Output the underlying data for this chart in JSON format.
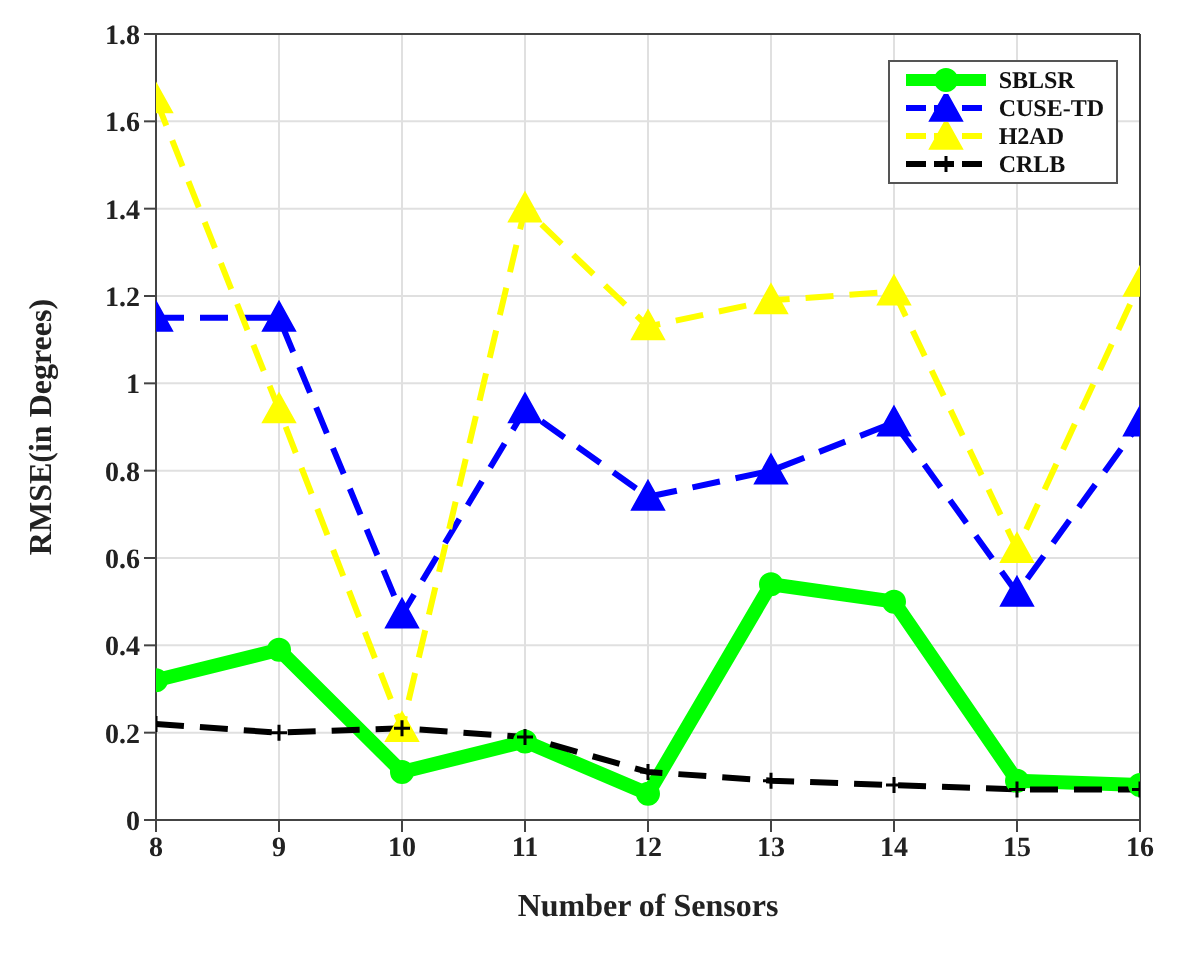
{
  "chart_data": {
    "type": "line",
    "xlabel": "Number of Sensors",
    "ylabel": "RMSE(in Degrees)",
    "x": [
      8,
      9,
      10,
      11,
      12,
      13,
      14,
      15,
      16
    ],
    "xlim": [
      8,
      16
    ],
    "xticks": [
      8,
      9,
      10,
      11,
      12,
      13,
      14,
      15,
      16
    ],
    "ylim": [
      0,
      1.8
    ],
    "yticks": [
      0,
      0.2,
      0.4,
      0.6,
      0.8,
      1,
      1.2,
      1.4,
      1.6,
      1.8
    ],
    "grid": true,
    "legend": "top right",
    "series": [
      {
        "name": "SBLSR",
        "color": "#00ff00",
        "marker": "circle",
        "line_style": "solid",
        "values": [
          0.32,
          0.39,
          0.11,
          0.18,
          0.06,
          0.54,
          0.5,
          0.09,
          0.08
        ]
      },
      {
        "name": "CUSE-TD",
        "color": "#0000ff",
        "marker": "triangle",
        "line_style": "dashed",
        "values": [
          1.15,
          1.15,
          0.47,
          0.94,
          0.74,
          0.8,
          0.91,
          0.52,
          0.91
        ]
      },
      {
        "name": "H2AD",
        "color": "#ffff00",
        "marker": "triangle",
        "line_style": "dashed",
        "values": [
          1.65,
          0.94,
          0.21,
          1.4,
          1.13,
          1.19,
          1.21,
          0.62,
          1.23
        ]
      },
      {
        "name": "CRLB",
        "color": "#000000",
        "marker": "cross",
        "line_style": "dashed",
        "values": [
          0.22,
          0.2,
          0.21,
          0.19,
          0.11,
          0.09,
          0.08,
          0.07,
          0.07
        ]
      }
    ]
  }
}
